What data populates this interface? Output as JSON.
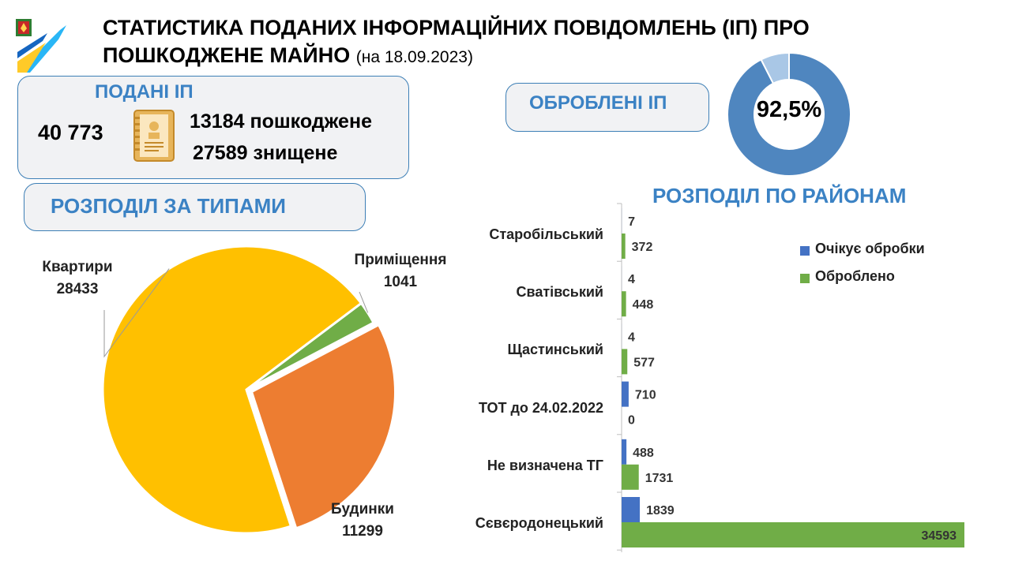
{
  "header": {
    "title_line1": "СТАТИСТИКА ПОДАНИХ ІНФОРМАЦІЙНИХ ПОВІДОМЛЕНЬ (ІП) ПРО",
    "title_line2": "ПОШКОДЖЕНЕ МАЙНО",
    "date": "(на 18.09.2023)"
  },
  "submitted": {
    "title": "ПОДАНІ ІП",
    "total": "40 773",
    "damaged": "13184 пошкоджене",
    "destroyed": "27589 знищене"
  },
  "processed": {
    "title": "ОБРОБЛЕНІ ІП",
    "percent_label": "92,5%",
    "percent_value": 92.5
  },
  "types_header": "РОЗПОДІЛ ЗА ТИПАМИ",
  "districts_header": "РОЗПОДІЛ ПО РАЙОНАМ",
  "colors": {
    "accent": "#3b82c4",
    "donut_main": "#4f86bf",
    "donut_rest": "#a9c7e6",
    "pie_apartments": "#ffc000",
    "pie_houses": "#ed7d31",
    "pie_premises": "#70ad47",
    "bar_pending": "#4472c4",
    "bar_processed": "#70ad47"
  },
  "chart_data": [
    {
      "type": "pie",
      "slices": [
        {
          "name": "Квартири",
          "value": 28433,
          "color": "#ffc000"
        },
        {
          "name": "Приміщення",
          "value": 1041,
          "color": "#70ad47"
        },
        {
          "name": "Будинки",
          "value": 11299,
          "color": "#ed7d31"
        }
      ]
    },
    {
      "type": "bar",
      "orientation": "horizontal",
      "title": "РОЗПОДІЛ ПО РАЙОНАМ",
      "categories": [
        "Старобільський",
        "Сватівський",
        "Щастинський",
        "ТОТ до 24.02.2022",
        "Не визначена ТГ",
        "Сєвєродонецький"
      ],
      "series": [
        {
          "name": "Очікує обробки",
          "values": [
            7,
            4,
            4,
            710,
            488,
            1839
          ],
          "color": "#4472c4"
        },
        {
          "name": "Оброблено",
          "values": [
            372,
            448,
            577,
            0,
            1731,
            34593
          ],
          "color": "#70ad47"
        }
      ],
      "legend_position": "top-right",
      "grid": false
    }
  ]
}
